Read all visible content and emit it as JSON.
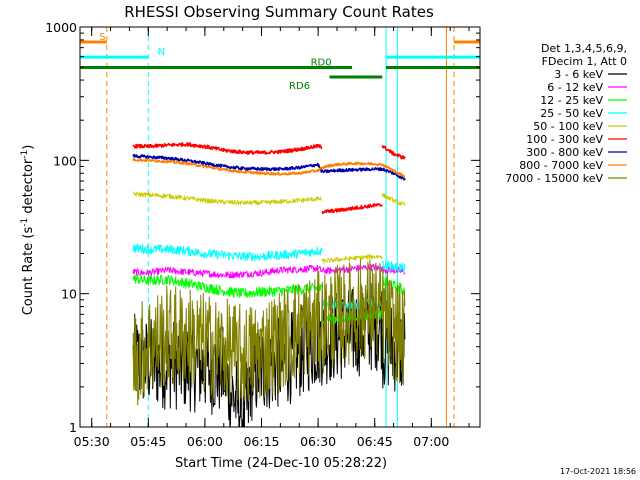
{
  "chart_data": {
    "type": "line",
    "title": "RHESSI Observing Summary Count Rates",
    "xlabel": "Start Time (24-Dec-10 05:28:22)",
    "ylabel": "Count Rate (s⁻¹ detector⁻¹)",
    "ylabel_parts": {
      "base": "Count Rate (s",
      "exp1": "-1",
      "mid": " detector",
      "exp2": "-1",
      "end": ")"
    },
    "yscale": "log",
    "ylim": [
      1,
      1000
    ],
    "xlim_min": [
      -1.5,
      104.5
    ],
    "y_ticks": [
      {
        "value": 1,
        "label": "1"
      },
      {
        "value": 10,
        "label": "10"
      },
      {
        "value": 100,
        "label": "100"
      },
      {
        "value": 1000,
        "label": "1000"
      }
    ],
    "x_ticks": [
      {
        "t": 1.6,
        "label": "05:30"
      },
      {
        "t": 16.6,
        "label": "05:45"
      },
      {
        "t": 31.6,
        "label": "06:00"
      },
      {
        "t": 46.6,
        "label": "06:15"
      },
      {
        "t": 61.6,
        "label": "06:30"
      },
      {
        "t": 76.6,
        "label": "06:45"
      },
      {
        "t": 91.6,
        "label": "07:00"
      }
    ],
    "legend": {
      "header": [
        "Det 1,3,4,5,6,9,",
        "FDecim 1, Att 0"
      ],
      "placement": "right"
    },
    "series": [
      {
        "name": "3 - 6 keV",
        "color": "#000000",
        "stroke": 1,
        "noise": 0.8,
        "segments": [
          [
            12.6,
            43.4,
            [
              [
                12.6,
                3.2
              ],
              [
                16.6,
                3.0
              ],
              [
                21.6,
                3.0
              ],
              [
                26.6,
                2.9
              ],
              [
                31.6,
                2.8
              ],
              [
                36.6,
                2.6
              ],
              [
                38.6,
                1.8
              ],
              [
                41.6,
                1.3
              ],
              [
                43.4,
                1.5
              ]
            ]
          ],
          [
            43.4,
            78.6,
            [
              [
                43.4,
                2.3
              ],
              [
                46.6,
                2.8
              ],
              [
                51.6,
                3.0
              ],
              [
                56.6,
                3.6
              ],
              [
                61.6,
                4.4
              ],
              [
                66.6,
                4.8
              ],
              [
                71.6,
                5.2
              ],
              [
                76.6,
                5.8
              ],
              [
                78.6,
                6.0
              ]
            ]
          ],
          [
            78.6,
            84.6,
            [
              [
                78.6,
                4.2
              ],
              [
                81.6,
                4.0
              ],
              [
                84.6,
                3.8
              ]
            ]
          ]
        ]
      },
      {
        "name": "6 - 12 keV",
        "color": "#ff00ff",
        "stroke": 1,
        "noise": 0.06,
        "segments": [
          [
            12.6,
            84.6,
            [
              [
                12.6,
                14.5
              ],
              [
                16.6,
                14.3
              ],
              [
                21.6,
                15.0
              ],
              [
                26.6,
                14.5
              ],
              [
                31.6,
                14.2
              ],
              [
                36.6,
                13.8
              ],
              [
                41.6,
                14.0
              ],
              [
                46.6,
                14.3
              ],
              [
                51.6,
                15.0
              ],
              [
                56.6,
                15.2
              ],
              [
                61.6,
                15.5
              ],
              [
                62.6,
                14.8
              ],
              [
                66.6,
                15.0
              ],
              [
                71.6,
                15.5
              ],
              [
                76.6,
                15.8
              ],
              [
                78.6,
                15.2
              ],
              [
                81.6,
                15.0
              ],
              [
                84.6,
                14.6
              ]
            ]
          ]
        ]
      },
      {
        "name": "12 - 25 keV",
        "color": "#00ff00",
        "stroke": 1,
        "noise": 0.09,
        "segments": [
          [
            12.6,
            62.6,
            [
              [
                12.6,
                13.0
              ],
              [
                16.6,
                12.5
              ],
              [
                21.6,
                12.8
              ],
              [
                26.6,
                12.0
              ],
              [
                31.6,
                11.2
              ],
              [
                36.6,
                10.5
              ],
              [
                41.6,
                10.0
              ],
              [
                46.6,
                10.3
              ],
              [
                51.6,
                10.5
              ],
              [
                56.6,
                10.8
              ],
              [
                61.6,
                11.0
              ],
              [
                62.6,
                10.8
              ]
            ]
          ],
          [
            62.6,
            78.6,
            [
              [
                62.6,
                6.5
              ],
              [
                66.6,
                6.5
              ],
              [
                71.6,
                6.8
              ],
              [
                76.6,
                7.0
              ],
              [
                78.6,
                7.0
              ]
            ]
          ],
          [
            78.6,
            84.6,
            [
              [
                78.6,
                12.5
              ],
              [
                81.6,
                11.5
              ],
              [
                84.6,
                10.5
              ]
            ]
          ]
        ]
      },
      {
        "name": "25 - 50 keV",
        "color": "#00ffff",
        "stroke": 1,
        "noise": 0.08,
        "segments": [
          [
            12.6,
            62.6,
            [
              [
                12.6,
                22.0
              ],
              [
                16.6,
                21.5
              ],
              [
                21.6,
                21.5
              ],
              [
                26.6,
                21.0
              ],
              [
                31.6,
                20.0
              ],
              [
                36.6,
                19.5
              ],
              [
                41.6,
                19.0
              ],
              [
                46.6,
                19.0
              ],
              [
                51.6,
                19.5
              ],
              [
                56.6,
                20.0
              ],
              [
                61.6,
                21.0
              ],
              [
                62.6,
                20.8
              ]
            ]
          ],
          [
            62.6,
            78.6,
            [
              [
                62.6,
                8.5
              ],
              [
                66.6,
                8.2
              ],
              [
                71.6,
                8.3
              ],
              [
                76.6,
                8.5
              ],
              [
                78.6,
                8.5
              ]
            ]
          ],
          [
            78.6,
            84.6,
            [
              [
                78.6,
                16.5
              ],
              [
                81.6,
                16.0
              ],
              [
                84.6,
                15.5
              ]
            ]
          ]
        ]
      },
      {
        "name": "50 - 100 keV",
        "color": "#cccc00",
        "stroke": 1,
        "noise": 0.04,
        "segments": [
          [
            12.6,
            62.6,
            [
              [
                12.6,
                56.0
              ],
              [
                16.6,
                55.0
              ],
              [
                21.6,
                54.0
              ],
              [
                26.6,
                52.0
              ],
              [
                31.6,
                50.0
              ],
              [
                36.6,
                48.5
              ],
              [
                41.6,
                48.0
              ],
              [
                46.6,
                48.0
              ],
              [
                51.6,
                49.0
              ],
              [
                56.6,
                50.0
              ],
              [
                61.6,
                51.5
              ],
              [
                62.6,
                51.0
              ]
            ]
          ],
          [
            62.6,
            78.6,
            [
              [
                62.6,
                17.5
              ],
              [
                66.6,
                18.0
              ],
              [
                71.6,
                18.5
              ],
              [
                76.6,
                19.0
              ],
              [
                78.6,
                19.0
              ]
            ]
          ],
          [
            78.6,
            84.6,
            [
              [
                78.6,
                55.0
              ],
              [
                81.6,
                50.0
              ],
              [
                84.6,
                46.0
              ]
            ]
          ]
        ]
      },
      {
        "name": "100 - 300 keV",
        "color": "#ff0000",
        "stroke": 1.6,
        "noise": 0.03,
        "segments": [
          [
            12.6,
            62.6,
            [
              [
                12.6,
                128.0
              ],
              [
                16.6,
                127.0
              ],
              [
                21.6,
                130.0
              ],
              [
                26.6,
                132.0
              ],
              [
                31.6,
                127.0
              ],
              [
                36.6,
                119.0
              ],
              [
                41.6,
                115.0
              ],
              [
                46.6,
                114.0
              ],
              [
                51.6,
                116.0
              ],
              [
                56.6,
                121.0
              ],
              [
                61.6,
                128.0
              ],
              [
                62.6,
                126.0
              ]
            ]
          ],
          [
            62.6,
            78.6,
            [
              [
                62.6,
                41.0
              ],
              [
                66.6,
                42.0
              ],
              [
                71.6,
                44.0
              ],
              [
                76.6,
                46.0
              ],
              [
                78.6,
                46.0
              ]
            ]
          ],
          [
            78.6,
            84.6,
            [
              [
                78.6,
                128.0
              ],
              [
                81.6,
                112.0
              ],
              [
                84.6,
                104.0
              ]
            ]
          ]
        ]
      },
      {
        "name": "300 - 800 keV",
        "color": "#0000aa",
        "stroke": 1.6,
        "noise": 0.025,
        "segments": [
          [
            12.6,
            84.6,
            [
              [
                12.6,
                108.0
              ],
              [
                16.6,
                106.0
              ],
              [
                21.6,
                104.0
              ],
              [
                26.6,
                100.0
              ],
              [
                31.6,
                95.0
              ],
              [
                36.6,
                90.0
              ],
              [
                41.6,
                87.0
              ],
              [
                46.6,
                86.0
              ],
              [
                51.6,
                86.0
              ],
              [
                56.6,
                88.0
              ],
              [
                61.6,
                93.0
              ],
              [
                62.6,
                82.0
              ],
              [
                66.6,
                84.0
              ],
              [
                71.6,
                85.0
              ],
              [
                76.6,
                86.0
              ],
              [
                78.6,
                86.0
              ],
              [
                81.6,
                80.0
              ],
              [
                84.6,
                72.0
              ]
            ]
          ]
        ]
      },
      {
        "name": "800 - 7000 keV",
        "color": "#ff8000",
        "stroke": 1.6,
        "noise": 0.02,
        "segments": [
          [
            12.6,
            84.6,
            [
              [
                12.6,
                101.0
              ],
              [
                16.6,
                100.0
              ],
              [
                21.6,
                98.0
              ],
              [
                26.6,
                95.0
              ],
              [
                31.6,
                90.0
              ],
              [
                36.6,
                85.0
              ],
              [
                41.6,
                82.0
              ],
              [
                46.6,
                80.0
              ],
              [
                51.6,
                79.0
              ],
              [
                56.6,
                80.0
              ],
              [
                61.6,
                84.0
              ],
              [
                63.6,
                90.0
              ],
              [
                66.6,
                93.0
              ],
              [
                71.6,
                95.0
              ],
              [
                76.6,
                94.0
              ],
              [
                78.6,
                93.0
              ],
              [
                81.6,
                84.0
              ],
              [
                84.6,
                75.0
              ]
            ]
          ]
        ]
      },
      {
        "name": "7000 - 15000 keV",
        "color": "#808000",
        "stroke": 1,
        "noise": 0.9,
        "segments": [
          [
            12.6,
            84.6,
            [
              [
                12.6,
                3.2
              ],
              [
                16.6,
                4.2
              ],
              [
                21.6,
                4.8
              ],
              [
                26.6,
                4.8
              ],
              [
                31.6,
                4.2
              ],
              [
                36.6,
                3.8
              ],
              [
                41.6,
                3.4
              ],
              [
                46.6,
                3.8
              ],
              [
                51.6,
                4.5
              ],
              [
                56.6,
                5.5
              ],
              [
                61.6,
                6.0
              ],
              [
                66.6,
                6.8
              ],
              [
                71.6,
                7.5
              ],
              [
                76.6,
                8.0
              ],
              [
                78.6,
                7.0
              ],
              [
                81.6,
                5.5
              ],
              [
                84.6,
                4.5
              ]
            ]
          ]
        ]
      }
    ],
    "flag_lines": [
      {
        "label": "S",
        "color": "#ff8000",
        "y": 772,
        "segments": [
          [
            -1.5,
            5.6
          ],
          [
            97.6,
            104.5
          ]
        ],
        "label_t": 3.6
      },
      {
        "label": "N",
        "color": "#00ffff",
        "y": 595,
        "segments": [
          [
            -1.5,
            16.6
          ],
          [
            79.6,
            104.5
          ]
        ],
        "label_t": 19.1
      },
      {
        "label": "RD0",
        "color": "#008000",
        "y": 497,
        "segments": [
          [
            -1.5,
            70.6
          ],
          [
            79.6,
            104.5
          ]
        ],
        "label_t": 59.6
      },
      {
        "label": "RD6",
        "color": "#008000",
        "y": 422,
        "segments": [
          [
            64.6,
            78.6
          ]
        ],
        "label_t": 53.9
      }
    ],
    "vlines": [
      {
        "t": 5.6,
        "color": "#ff8000",
        "dashed": true
      },
      {
        "t": 16.6,
        "color": "#00ffff",
        "dashed": true
      },
      {
        "t": 79.6,
        "color": "#00ffff",
        "dashed": false
      },
      {
        "t": 82.6,
        "color": "#00ffff",
        "dashed": false
      },
      {
        "t": 95.6,
        "color": "#ff8000",
        "dashed": false
      },
      {
        "t": 97.6,
        "color": "#ff8000",
        "dashed": true
      }
    ],
    "timestamp": "17-Oct-2021 18:56"
  }
}
